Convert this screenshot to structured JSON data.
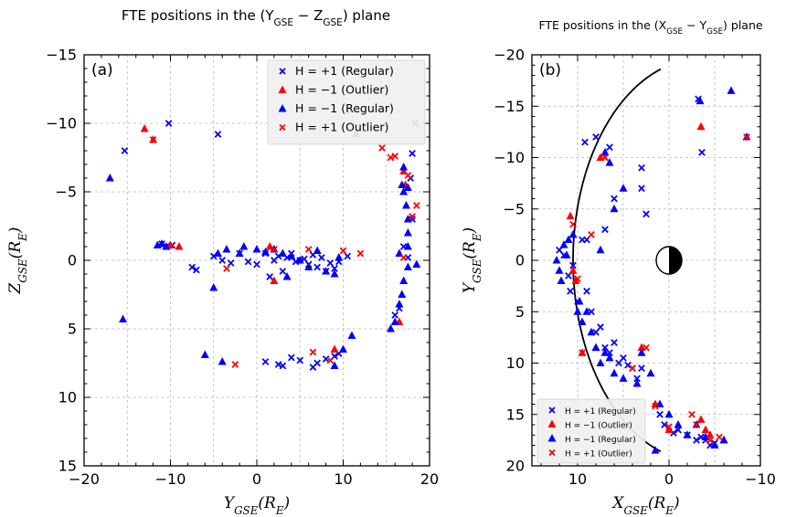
{
  "chart_data": [
    {
      "type": "scatter",
      "panel_label": "(a)",
      "title": "FTE positions in the (Y_GSE − Z_GSE) plane",
      "xlabel": "Y_GSE(R_E)",
      "ylabel": "Z_GSE(R_E)",
      "xlim": [
        -20,
        20
      ],
      "ylim": [
        -15,
        15
      ],
      "xticks": [
        "−20",
        "−10",
        "0",
        "10",
        "20"
      ],
      "yticks": [
        "15",
        "10",
        "5",
        "0",
        "−5",
        "−10",
        "−15"
      ],
      "grid": true,
      "legend_position": "top-right",
      "series": [
        {
          "name": "H = +1 (Regular)",
          "marker": "x",
          "color": "#0000ff",
          "points": [
            [
              -15.3,
              -8
            ],
            [
              -11,
              -1.2
            ],
            [
              -10.5,
              -1
            ],
            [
              -10.2,
              -10
            ],
            [
              -9.8,
              -1.1
            ],
            [
              -7.5,
              0.5
            ],
            [
              -7,
              0.7
            ],
            [
              -5,
              -0.3
            ],
            [
              -4.5,
              -9.2
            ],
            [
              -4,
              0
            ],
            [
              -3,
              0.2
            ],
            [
              -2,
              -0.5
            ],
            [
              -1,
              0.1
            ],
            [
              0,
              0.3
            ],
            [
              1,
              -0.5
            ],
            [
              1.5,
              1.2
            ],
            [
              2,
              0
            ],
            [
              2.5,
              -0.3
            ],
            [
              3,
              0.8
            ],
            [
              3.5,
              -0.2
            ],
            [
              4,
              -0.5
            ],
            [
              4.5,
              0.1
            ],
            [
              5,
              0
            ],
            [
              5.5,
              -0.1
            ],
            [
              6,
              0.3
            ],
            [
              6.5,
              -0.4
            ],
            [
              7,
              0.5
            ],
            [
              7.5,
              -0.2
            ],
            [
              8,
              0.8
            ],
            [
              8.5,
              0.2
            ],
            [
              9,
              0.6
            ],
            [
              9.5,
              0.1
            ],
            [
              10.5,
              -0.3
            ],
            [
              1,
              7.4
            ],
            [
              2.5,
              7.6
            ],
            [
              3,
              7.7
            ],
            [
              4,
              7.1
            ],
            [
              5,
              7.3
            ],
            [
              6.5,
              7.8
            ],
            [
              7,
              7.5
            ],
            [
              8,
              7.2
            ],
            [
              9,
              7
            ],
            [
              9.5,
              6.8
            ],
            [
              16,
              4
            ],
            [
              16.5,
              3.5
            ],
            [
              17,
              -1
            ],
            [
              17.5,
              -0.2
            ],
            [
              17.8,
              -6
            ],
            [
              18,
              -3
            ],
            [
              18,
              -7.8
            ],
            [
              18.3,
              -10
            ]
          ]
        },
        {
          "name": "H = −1 (Outlier)",
          "marker": "triangle",
          "color": "#ff0000",
          "points": [
            [
              -13,
              -9.6
            ],
            [
              -12,
              -8.8
            ],
            [
              -10,
              -1.1
            ],
            [
              -9,
              -1
            ],
            [
              1.5,
              -1
            ],
            [
              2,
              1.5
            ],
            [
              9,
              6.5
            ],
            [
              16.5,
              4.5
            ],
            [
              17.2,
              -5.5
            ],
            [
              17,
              -6.5
            ]
          ]
        },
        {
          "name": "H = −1 (Regular)",
          "marker": "triangle",
          "color": "#0000ff",
          "points": [
            [
              -17,
              -6
            ],
            [
              -15.5,
              4.3
            ],
            [
              -11.5,
              -1.1
            ],
            [
              -11,
              -1.2
            ],
            [
              -10.5,
              -1
            ],
            [
              -6,
              6.9
            ],
            [
              -5,
              2
            ],
            [
              -4.5,
              -0.5
            ],
            [
              -4,
              7.4
            ],
            [
              -3.5,
              -0.8
            ],
            [
              -2,
              -0.5
            ],
            [
              -1.5,
              -1
            ],
            [
              0,
              -0.8
            ],
            [
              1,
              -0.6
            ],
            [
              2,
              -0.8
            ],
            [
              3,
              -0.5
            ],
            [
              3.5,
              1.2
            ],
            [
              4,
              -0.3
            ],
            [
              5,
              0
            ],
            [
              6,
              0.5
            ],
            [
              7,
              -0.7
            ],
            [
              8,
              0.8
            ],
            [
              9,
              1
            ],
            [
              9.5,
              -0.2
            ],
            [
              9,
              7.7
            ],
            [
              10,
              6.5
            ],
            [
              11,
              5.5
            ],
            [
              11.5,
              -9.2
            ],
            [
              15.5,
              5
            ],
            [
              16,
              4.5
            ],
            [
              16.5,
              3.2
            ],
            [
              16.8,
              2.5
            ],
            [
              17,
              1.5
            ],
            [
              17.5,
              0.5
            ],
            [
              17.5,
              -1
            ],
            [
              17.5,
              -2
            ],
            [
              17.5,
              -3
            ],
            [
              17.3,
              -4
            ],
            [
              17,
              -5
            ],
            [
              16.8,
              -5.5
            ],
            [
              17.5,
              -5.3
            ],
            [
              17,
              -6.8
            ],
            [
              18.5,
              0.3
            ],
            [
              16.5,
              -0.5
            ]
          ]
        },
        {
          "name": "H = +1 (Outlier)",
          "marker": "x",
          "color": "#ff0000",
          "points": [
            [
              -12,
              -8.8
            ],
            [
              -3.5,
              0.6
            ],
            [
              -2.5,
              7.6
            ],
            [
              2,
              -0.8
            ],
            [
              6,
              -0.8
            ],
            [
              6.5,
              6.7
            ],
            [
              8.5,
              7.3
            ],
            [
              10,
              -0.7
            ],
            [
              12,
              -0.5
            ],
            [
              14.5,
              -8.2
            ],
            [
              15.5,
              -7.5
            ],
            [
              16,
              -7.6
            ],
            [
              17,
              -0.2
            ],
            [
              18,
              -3.2
            ],
            [
              18.5,
              -4
            ],
            [
              17.5,
              -6.2
            ]
          ]
        }
      ]
    },
    {
      "type": "scatter",
      "panel_label": "(b)",
      "title": "FTE positions in the (X_GSE − Y_GSE) plane",
      "xlabel": "X_GSE(R_E)",
      "ylabel": "Y_GSE(R_E)",
      "xlim": [
        15,
        -10
      ],
      "ylim": [
        -20,
        20
      ],
      "xticks": [
        "10",
        "0",
        "−10"
      ],
      "yticks": [
        "−20",
        "−15",
        "−10",
        "−5",
        "0",
        "5",
        "10",
        "15",
        "20"
      ],
      "grid": true,
      "legend_position": "bottom-left",
      "annotations": [
        "magnetopause model curve",
        "Earth (half-shaded circle at origin)"
      ],
      "series": [
        {
          "name": "H = +1 (Regular)",
          "marker": "x",
          "color": "#0000ff",
          "points": [
            [
              12,
              -1
            ],
            [
              11.5,
              -0.5
            ],
            [
              11,
              1.5
            ],
            [
              10.8,
              3
            ],
            [
              10.5,
              0.5
            ],
            [
              10,
              4
            ],
            [
              9.5,
              -2
            ],
            [
              9,
              3
            ],
            [
              8.5,
              5
            ],
            [
              8,
              7
            ],
            [
              7.5,
              6.5
            ],
            [
              7,
              -3
            ],
            [
              7,
              8.5
            ],
            [
              6.5,
              9
            ],
            [
              6,
              -6
            ],
            [
              6,
              8
            ],
            [
              5.5,
              10
            ],
            [
              5,
              9.5
            ],
            [
              4.5,
              10.2
            ],
            [
              4,
              10.5
            ],
            [
              3.5,
              11.5
            ],
            [
              3,
              -7
            ],
            [
              2.5,
              -4.5
            ],
            [
              3,
              -9
            ],
            [
              7,
              -10
            ],
            [
              6.5,
              -11
            ],
            [
              8,
              -12
            ],
            [
              9.2,
              -11.5
            ],
            [
              3,
              10.5
            ],
            [
              1,
              15
            ],
            [
              0.5,
              16
            ],
            [
              -0.5,
              16.8
            ],
            [
              -1,
              16.5
            ],
            [
              -2,
              17
            ],
            [
              -3,
              17.5
            ],
            [
              -3.5,
              17.2
            ],
            [
              -4,
              17.5
            ],
            [
              -4.5,
              18
            ],
            [
              -5,
              17.8
            ],
            [
              -3.2,
              -15.7
            ],
            [
              -3.6,
              -10.5
            ],
            [
              9,
              -2
            ]
          ]
        },
        {
          "name": "H = −1 (Outlier)",
          "marker": "triangle",
          "color": "#ff0000",
          "points": [
            [
              10.8,
              -4.3
            ],
            [
              10.5,
              1
            ],
            [
              10.2,
              2
            ],
            [
              9.5,
              9
            ],
            [
              8,
              8.5
            ],
            [
              3,
              8.5
            ],
            [
              1.5,
              14
            ],
            [
              0,
              16.5
            ],
            [
              -3.5,
              15.5
            ],
            [
              -4,
              16.5
            ],
            [
              -4.5,
              17
            ],
            [
              -6,
              17.5
            ],
            [
              -3.5,
              -13
            ],
            [
              7.5,
              -10
            ]
          ]
        },
        {
          "name": "H = −1 (Regular)",
          "marker": "triangle",
          "color": "#0000ff",
          "points": [
            [
              12.3,
              0
            ],
            [
              12,
              1
            ],
            [
              11.8,
              2
            ],
            [
              11.5,
              -1.5
            ],
            [
              11.2,
              -0.5
            ],
            [
              11,
              -2
            ],
            [
              10.5,
              -2.5
            ],
            [
              10,
              5
            ],
            [
              9.8,
              4
            ],
            [
              9.5,
              6
            ],
            [
              9,
              5
            ],
            [
              8.5,
              7
            ],
            [
              8,
              8.5
            ],
            [
              7.5,
              10
            ],
            [
              7,
              9
            ],
            [
              6.5,
              9.5
            ],
            [
              6,
              11
            ],
            [
              5,
              11.5
            ],
            [
              3.5,
              12
            ],
            [
              3,
              9
            ],
            [
              2,
              11
            ],
            [
              1,
              14
            ],
            [
              0,
              15
            ],
            [
              -1,
              16
            ],
            [
              -2,
              17
            ],
            [
              -3,
              16
            ],
            [
              -4,
              17.2
            ],
            [
              -5,
              18
            ],
            [
              -6,
              17.5
            ],
            [
              1.5,
              18.5
            ],
            [
              7.5,
              -1
            ],
            [
              6,
              -5
            ],
            [
              5,
              -7
            ],
            [
              6.5,
              -9.5
            ],
            [
              7,
              -10.5
            ],
            [
              -3.4,
              -15.5
            ],
            [
              -6.8,
              -16.5
            ],
            [
              -8.5,
              -12
            ]
          ]
        },
        {
          "name": "H = +1 (Outlier)",
          "marker": "x",
          "color": "#ff0000",
          "points": [
            [
              10.5,
              -3.5
            ],
            [
              10,
              1.8
            ],
            [
              9.5,
              9
            ],
            [
              8.5,
              -2.5
            ],
            [
              2.5,
              8.5
            ],
            [
              1.5,
              14.2
            ],
            [
              0,
              16.2
            ],
            [
              -2.5,
              15
            ],
            [
              -3,
              16
            ],
            [
              -4.5,
              17.5
            ],
            [
              -5.5,
              17.2
            ],
            [
              -8.5,
              -12
            ],
            [
              7,
              -10
            ],
            [
              4,
              10.5
            ]
          ]
        }
      ]
    }
  ]
}
